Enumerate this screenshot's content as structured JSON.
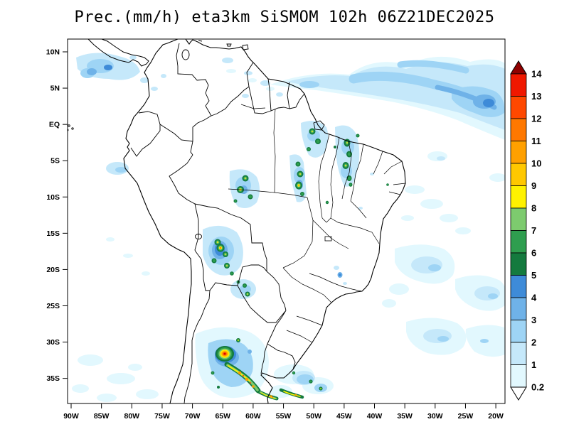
{
  "title": "Prec.(mm/h) eta3km SiSMOM 102h 06Z21DEC2025",
  "axes": {
    "lat": [
      "10N",
      "5N",
      "EQ",
      "5S",
      "10S",
      "15S",
      "20S",
      "25S",
      "30S",
      "35S"
    ],
    "lon": [
      "90W",
      "85W",
      "80W",
      "75W",
      "70W",
      "65W",
      "60W",
      "55W",
      "50W",
      "45W",
      "40W",
      "35W",
      "30W",
      "25W",
      "20W"
    ]
  },
  "colorbar": {
    "boundary_labels_top_to_bottom": [
      "14",
      "13",
      "12",
      "11",
      "10",
      "9",
      "8",
      "7",
      "6",
      "5",
      "4",
      "3",
      "2",
      "1",
      "0.2"
    ],
    "segment_colors_top_to_bottom": [
      "#F01800",
      "#FF4800",
      "#FF7800",
      "#FFA000",
      "#FFC800",
      "#FFF200",
      "#7DCB6E",
      "#2E9E4F",
      "#147A3E",
      "#3E8BD8",
      "#6FB2E8",
      "#9ED4F5",
      "#C5E8FA",
      "#E2F8FE"
    ],
    "over_color": "#900000",
    "under_color": "#FFFFFF"
  },
  "chart_data": {
    "type": "heatmap",
    "title": "Prec.(mm/h) eta3km SiSMOM 102h 06Z21DEC2025",
    "units": "mm/h",
    "x_ticks": [
      "90W",
      "85W",
      "80W",
      "75W",
      "70W",
      "65W",
      "60W",
      "55W",
      "50W",
      "45W",
      "40W",
      "35W",
      "30W",
      "25W",
      "20W"
    ],
    "y_ticks": [
      "10N",
      "5N",
      "EQ",
      "5S",
      "10S",
      "15S",
      "20S",
      "25S",
      "30S",
      "35S"
    ],
    "scale_levels": [
      0.2,
      1,
      2,
      3,
      4,
      5,
      6,
      7,
      8,
      9,
      10,
      11,
      12,
      13,
      14
    ],
    "legend_position": "right"
  }
}
